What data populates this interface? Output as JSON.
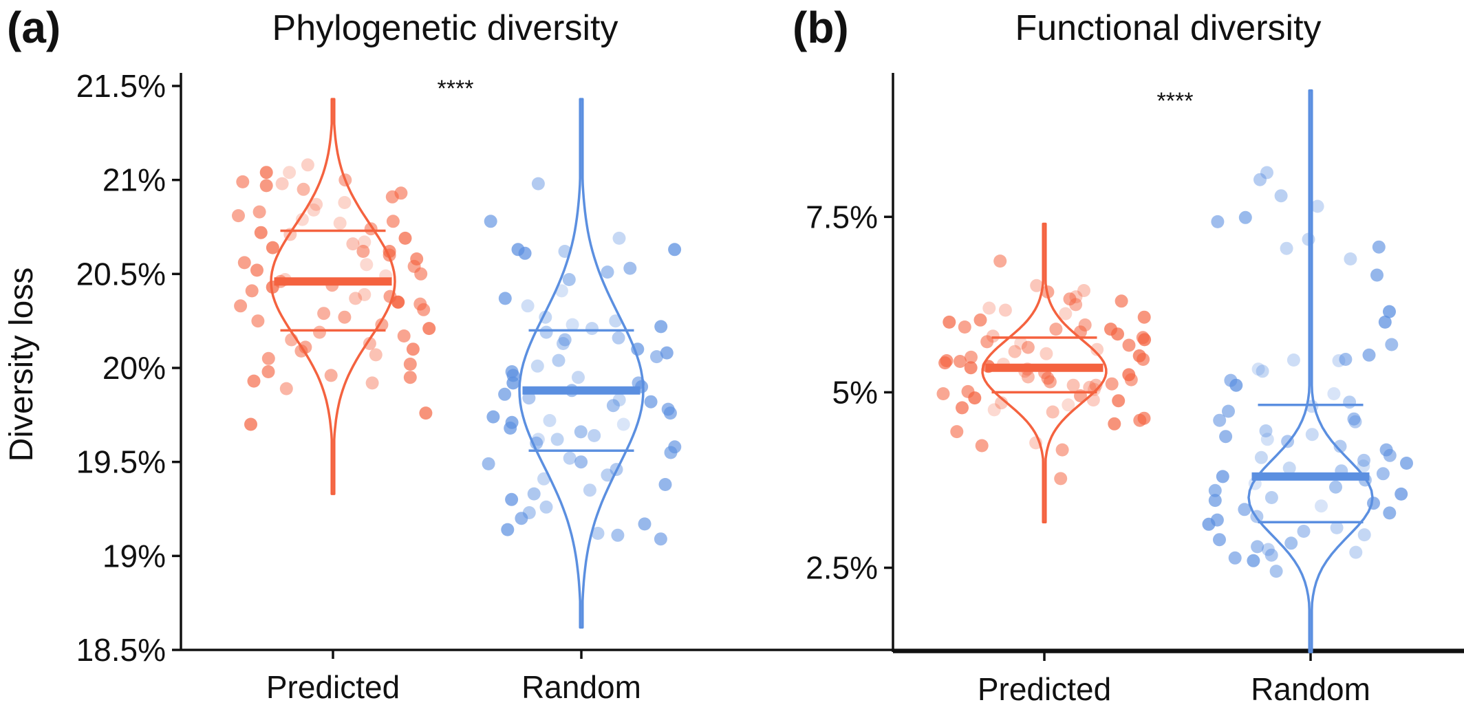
{
  "figure": {
    "ylabel": "Diversity loss"
  },
  "colors": {
    "predicted": "#f4623f",
    "random": "#5b8fe0",
    "axis": "#111111"
  },
  "chart_data": [
    {
      "type": "scatter",
      "subtype": "violin-with-jitter",
      "panel_letter": "(a)",
      "title": "Phylogenetic diversity",
      "ylabel": "Diversity loss",
      "xlabel": "",
      "categories": [
        "Predicted",
        "Random"
      ],
      "ylim": [
        18.5,
        21.5
      ],
      "yticks": [
        18.5,
        19,
        19.5,
        20,
        20.5,
        21,
        21.5
      ],
      "ytick_labels": [
        "18.5%",
        "19%",
        "19.5%",
        "20%",
        "20.5%",
        "21%",
        "21.5%"
      ],
      "significance": "****",
      "grid": false,
      "series": [
        {
          "name": "Predicted",
          "color": "#f4623f",
          "mean": 20.46,
          "ci_upper": 20.73,
          "ci_lower": 20.2,
          "violin_range": [
            19.33,
            21.43
          ],
          "violin_mode": 20.46,
          "violin_spread": 0.3,
          "values": [
            21.04,
            20.98,
            20.99,
            20.97,
            20.93,
            20.91,
            21.08,
            21.04,
            21.0,
            20.95,
            20.88,
            20.87,
            20.84,
            20.83,
            20.81,
            20.79,
            20.78,
            20.77,
            20.74,
            20.72,
            20.71,
            20.69,
            20.67,
            20.66,
            20.64,
            20.62,
            20.6,
            20.58,
            20.56,
            20.55,
            20.54,
            20.52,
            20.5,
            20.49,
            20.47,
            20.46,
            20.44,
            20.43,
            20.41,
            20.39,
            20.38,
            20.37,
            20.35,
            20.34,
            20.33,
            20.31,
            20.29,
            20.27,
            20.25,
            20.23,
            20.21,
            20.19,
            20.17,
            20.15,
            20.13,
            20.11,
            20.09,
            20.07,
            20.05,
            19.98,
            19.96,
            19.95,
            19.93,
            19.92,
            19.89,
            19.76,
            19.7,
            20.62,
            20.35,
            20.1,
            20.02
          ]
        },
        {
          "name": "Random",
          "color": "#5b8fe0",
          "mean": 19.88,
          "ci_upper": 20.2,
          "ci_lower": 19.56,
          "violin_range": [
            18.62,
            21.43
          ],
          "violin_mode": 19.88,
          "violin_spread": 0.4,
          "values": [
            20.98,
            20.78,
            20.69,
            20.63,
            20.62,
            20.63,
            20.61,
            20.53,
            20.51,
            20.47,
            20.41,
            20.37,
            20.33,
            20.27,
            20.25,
            20.23,
            20.21,
            20.19,
            20.16,
            20.15,
            20.13,
            20.1,
            20.06,
            20.04,
            20.01,
            19.98,
            19.96,
            19.95,
            19.92,
            19.9,
            19.88,
            19.86,
            19.84,
            19.82,
            19.8,
            19.78,
            19.76,
            19.74,
            19.72,
            19.7,
            19.68,
            19.66,
            19.64,
            19.62,
            19.6,
            19.58,
            19.55,
            19.52,
            19.49,
            19.46,
            19.43,
            19.41,
            19.38,
            19.35,
            19.33,
            19.3,
            19.26,
            19.23,
            19.2,
            19.17,
            19.14,
            19.12,
            19.11,
            19.09,
            20.22,
            19.83,
            19.71,
            19.92,
            20.08,
            19.5,
            19.62
          ]
        }
      ]
    },
    {
      "type": "scatter",
      "subtype": "violin-with-jitter",
      "panel_letter": "(b)",
      "title": "Functional diversity",
      "ylabel": "",
      "xlabel": "",
      "categories": [
        "Predicted",
        "Random"
      ],
      "ylim": [
        1.3,
        9.6
      ],
      "yticks": [
        2.5,
        5,
        7.5
      ],
      "ytick_labels": [
        "2.5%",
        "5%",
        "7.5%"
      ],
      "significance": "****",
      "grid": false,
      "series": [
        {
          "name": "Predicted",
          "color": "#f4623f",
          "mean": 5.35,
          "ci_upper": 5.78,
          "ci_lower": 5.0,
          "violin_range": [
            3.15,
            7.4
          ],
          "violin_mode": 5.3,
          "violin_spread": 0.45,
          "values": [
            6.87,
            6.52,
            6.45,
            6.43,
            6.33,
            6.3,
            6.25,
            6.2,
            6.17,
            6.12,
            6.07,
            6.03,
            6.0,
            5.96,
            5.93,
            5.9,
            5.86,
            5.83,
            5.8,
            5.78,
            5.75,
            5.72,
            5.7,
            5.67,
            5.64,
            5.61,
            5.58,
            5.55,
            5.52,
            5.5,
            5.47,
            5.44,
            5.42,
            5.4,
            5.37,
            5.35,
            5.33,
            5.3,
            5.28,
            5.25,
            5.22,
            5.2,
            5.18,
            5.15,
            5.12,
            5.1,
            5.07,
            5.04,
            5.01,
            4.98,
            4.95,
            4.92,
            4.89,
            4.85,
            4.82,
            4.78,
            4.75,
            4.72,
            4.63,
            4.6,
            4.55,
            4.44,
            4.28,
            4.24,
            4.18,
            3.77,
            6.36,
            5.9,
            5.45,
            5.1,
            4.88
          ]
        },
        {
          "name": "Random",
          "color": "#5b8fe0",
          "mean": 3.8,
          "ci_upper": 4.82,
          "ci_lower": 3.15,
          "violin_range": [
            1.3,
            9.3
          ],
          "violin_mode": 3.5,
          "violin_spread": 0.55,
          "values": [
            8.13,
            8.03,
            7.8,
            7.65,
            7.49,
            7.43,
            7.18,
            7.07,
            7.05,
            6.9,
            6.67,
            6.15,
            6.0,
            5.68,
            5.53,
            5.47,
            5.46,
            5.45,
            5.33,
            5.3,
            5.17,
            5.1,
            4.98,
            4.86,
            4.8,
            4.73,
            4.62,
            4.6,
            4.58,
            4.45,
            4.4,
            4.37,
            4.33,
            4.3,
            4.23,
            4.18,
            4.1,
            4.07,
            4.03,
            3.99,
            3.95,
            3.92,
            3.88,
            3.84,
            3.8,
            3.75,
            3.7,
            3.65,
            3.6,
            3.55,
            3.5,
            3.46,
            3.42,
            3.38,
            3.33,
            3.28,
            3.23,
            3.18,
            3.12,
            3.07,
            3.02,
            2.97,
            2.9,
            2.85,
            2.8,
            2.76,
            2.72,
            2.68,
            2.64,
            2.6,
            2.45
          ]
        }
      ]
    }
  ]
}
